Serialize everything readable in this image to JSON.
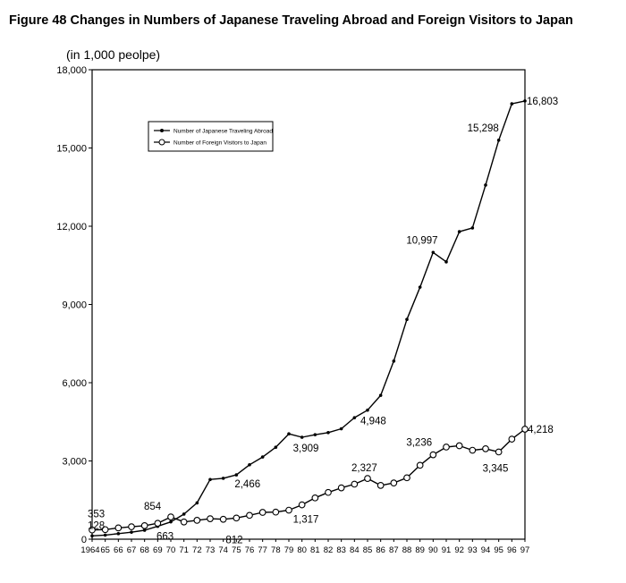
{
  "chart_data": {
    "type": "line",
    "title": "Figure 48 Changes in Numbers of Japanese Traveling Abroad and Foreign Visitors to Japan",
    "unit_label": "(in 1,000 peolpe)",
    "x": [
      "1964",
      "65",
      "66",
      "67",
      "68",
      "69",
      "70",
      "71",
      "72",
      "73",
      "74",
      "75",
      "76",
      "77",
      "78",
      "79",
      "80",
      "81",
      "82",
      "83",
      "84",
      "85",
      "86",
      "87",
      "88",
      "89",
      "90",
      "91",
      "92",
      "93",
      "94",
      "95",
      "96",
      "97"
    ],
    "ylim": [
      0,
      18000
    ],
    "y_ticks": [
      "18,000",
      "15,000",
      "12,000",
      "9,000",
      "6,000",
      "3,000",
      "0"
    ],
    "grid": false,
    "legend_position": "top-left",
    "series": [
      {
        "name": "Number of Japanese Traveling Abroad",
        "marker": "filled-dot",
        "values": [
          128,
          159,
          212,
          268,
          344,
          493,
          663,
          961,
          1392,
          2289,
          2336,
          2466,
          2853,
          3151,
          3525,
          4038,
          3909,
          4006,
          4087,
          4233,
          4659,
          4948,
          5516,
          6829,
          8427,
          9663,
          10997,
          10634,
          11791,
          11934,
          13579,
          15298,
          16695,
          16803
        ]
      },
      {
        "name": "Number of Foreign Visitors to Japan",
        "marker": "open-circle",
        "values": [
          353,
          367,
          433,
          477,
          519,
          609,
          854,
          661,
          724,
          785,
          764,
          812,
          915,
          1028,
          1039,
          1113,
          1317,
          1583,
          1793,
          1968,
          2110,
          2327,
          2062,
          2155,
          2355,
          2835,
          3236,
          3533,
          3582,
          3410,
          3468,
          3345,
          3837,
          4218
        ]
      }
    ],
    "data_labels": {
      "abroad": [
        {
          "index": 0,
          "text": "128"
        },
        {
          "index": 6,
          "text": "663"
        },
        {
          "index": 11,
          "text": "2,466"
        },
        {
          "index": 16,
          "text": "3,909"
        },
        {
          "index": 21,
          "text": "4,948"
        },
        {
          "index": 26,
          "text": "10,997"
        },
        {
          "index": 31,
          "text": "15,298"
        },
        {
          "index": 33,
          "text": "16,803"
        }
      ],
      "visitors": [
        {
          "index": 0,
          "text": "353"
        },
        {
          "index": 6,
          "text": "854"
        },
        {
          "index": 11,
          "text": "812"
        },
        {
          "index": 16,
          "text": "1,317"
        },
        {
          "index": 21,
          "text": "2,327"
        },
        {
          "index": 26,
          "text": "3,236"
        },
        {
          "index": 31,
          "text": "3,345"
        },
        {
          "index": 33,
          "text": "4,218"
        }
      ]
    }
  }
}
